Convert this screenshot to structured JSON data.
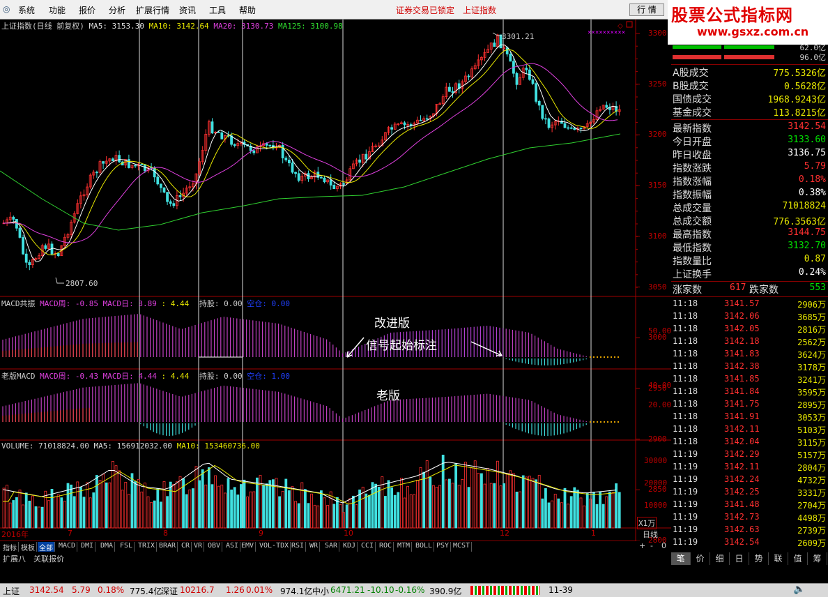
{
  "menu": [
    "系统",
    "功能",
    "报价",
    "分析",
    "扩展行情",
    "资讯",
    "工具",
    "帮助"
  ],
  "status": {
    "locked": "证券交易已锁定",
    "index": "上证指数"
  },
  "quote_button": "行 情",
  "watermark": {
    "title": "股票公式指标网",
    "url": "www.gsxz.com.cn"
  },
  "main_chart": {
    "title": "上证指数(日线 前复权)",
    "ma5": "MA5: 3153.30",
    "ma10": "MA10: 3142.64",
    "ma20": "MA20: 3130.73",
    "ma125": "MA125: 3100.98",
    "high_label": "3301.21",
    "low_label": "2807.60",
    "y_ticks": [
      "3300",
      "3250",
      "3200",
      "3150",
      "3100",
      "3050",
      "3000",
      "2950",
      "2900",
      "2850",
      "2800"
    ],
    "x_labels": [
      "2016年",
      "7",
      "8",
      "9",
      "10",
      "12",
      "1"
    ]
  },
  "macd_new": {
    "title": "MACD共振",
    "week": "MACD周: -0.85",
    "day": "MACD日: 3.89",
    "v1": ": 4.44",
    "hold": "持股: 0.00",
    "empty": "空仓: 0.00",
    "y_ticks": [
      "50.00"
    ]
  },
  "macd_old": {
    "title": "老版MACD",
    "week": "MACD周: -0.43",
    "day": "MACD日: 4.44",
    "v1": ": 4.44",
    "hold": "持股: 0.00",
    "empty": "空仓: 1.00",
    "y_ticks": [
      "40.00",
      "20.00"
    ]
  },
  "annotations": {
    "improved": "改进版",
    "signal": "信号起始标注",
    "old": "老版"
  },
  "volume": {
    "title": "VOLUME: 71018824.00",
    "ma5": "MA5: 156912032.00",
    "ma10": "MA10: 153460736.00",
    "y_ticks": [
      "30000",
      "20000",
      "10000"
    ],
    "unit": "X1万"
  },
  "daily_label": "日线",
  "ratio": {
    "a": "62.0亿",
    "b": "96.0亿"
  },
  "right_panel": {
    "turnover": [
      {
        "k": "A股成交",
        "v": "775.5326亿"
      },
      {
        "k": "B股成交",
        "v": "0.5628亿"
      },
      {
        "k": "国债成交",
        "v": "1968.9243亿"
      },
      {
        "k": "基金成交",
        "v": "113.8215亿"
      }
    ],
    "stats": [
      {
        "k": "最新指数",
        "v": "3142.54",
        "c": "#ff3030"
      },
      {
        "k": "今日开盘",
        "v": "3133.60",
        "c": "#00e000"
      },
      {
        "k": "昨日收盘",
        "v": "3136.75",
        "c": "#ffffff"
      },
      {
        "k": "指数涨跌",
        "v": "5.79",
        "c": "#ff3030"
      },
      {
        "k": "指数涨幅",
        "v": "0.18%",
        "c": "#ff3030"
      },
      {
        "k": "指数振幅",
        "v": "0.38%",
        "c": "#ffffff"
      },
      {
        "k": "总成交量",
        "v": "71018824",
        "c": "#e8e800"
      },
      {
        "k": "总成交额",
        "v": "776.3563亿",
        "c": "#e8e800"
      },
      {
        "k": "最高指数",
        "v": "3144.75",
        "c": "#ff3030"
      },
      {
        "k": "最低指数",
        "v": "3132.70",
        "c": "#00e000"
      },
      {
        "k": "指数量比",
        "v": "0.87",
        "c": "#e8e800"
      },
      {
        "k": "上证换手",
        "v": "0.24%",
        "c": "#ffffff"
      }
    ],
    "up_label": "涨家数",
    "up_value": "617",
    "down_label": "跌家数",
    "down_value": "553",
    "ticks": [
      {
        "t": "11:18",
        "p": "3141.57",
        "q": "2906万"
      },
      {
        "t": "11:18",
        "p": "3142.06",
        "q": "3685万"
      },
      {
        "t": "11:18",
        "p": "3142.05",
        "q": "2816万"
      },
      {
        "t": "11:18",
        "p": "3142.18",
        "q": "2562万"
      },
      {
        "t": "11:18",
        "p": "3141.83",
        "q": "3624万"
      },
      {
        "t": "11:18",
        "p": "3142.38",
        "q": "3178万"
      },
      {
        "t": "11:18",
        "p": "3141.85",
        "q": "3241万"
      },
      {
        "t": "11:18",
        "p": "3141.84",
        "q": "3595万"
      },
      {
        "t": "11:18",
        "p": "3141.75",
        "q": "2895万"
      },
      {
        "t": "11:18",
        "p": "3141.91",
        "q": "3053万"
      },
      {
        "t": "11:18",
        "p": "3142.11",
        "q": "5103万"
      },
      {
        "t": "11:18",
        "p": "3142.04",
        "q": "3115万"
      },
      {
        "t": "11:19",
        "p": "3142.29",
        "q": "5157万"
      },
      {
        "t": "11:19",
        "p": "3142.11",
        "q": "2804万"
      },
      {
        "t": "11:19",
        "p": "3142.24",
        "q": "4732万"
      },
      {
        "t": "11:19",
        "p": "3142.25",
        "q": "3331万"
      },
      {
        "t": "11:19",
        "p": "3141.48",
        "q": "2704万"
      },
      {
        "t": "11:19",
        "p": "3142.73",
        "q": "4498万"
      },
      {
        "t": "11:19",
        "p": "3142.63",
        "q": "2739万"
      },
      {
        "t": "11:19",
        "p": "3142.54",
        "q": "2609万"
      }
    ],
    "tabs": [
      "笔",
      "价",
      "细",
      "日",
      "势",
      "联",
      "值",
      "筹"
    ]
  },
  "indicator_tabs": [
    "指标",
    "模板",
    "全部",
    "MACD",
    "DMI",
    "DMA",
    "FSL",
    "TRIX",
    "BRAR",
    "CR",
    "VR",
    "OBV",
    "ASI",
    "EMV",
    "VOL-TDX",
    "RSI",
    "WR",
    "SAR",
    "KDJ",
    "CCI",
    "ROC",
    "MTM",
    "BOLL",
    "PSY",
    "MCST"
  ],
  "sub_tabs": [
    "扩展八",
    "关联报价"
  ],
  "zoom_controls": [
    "+",
    "-",
    "0"
  ],
  "bottom": {
    "sh_label": "上证",
    "sh_value": "3142.54",
    "sh_chg": "5.79",
    "sh_pct": "0.18%",
    "sh_amt": "775.4亿",
    "sz_label": "深证",
    "sz_value": "10216.7",
    "sz_chg": "1.26",
    "sz_pct": "0.01%",
    "sz_amt": "974.1亿",
    "zx_label": "中小",
    "zx_value": "6471.21",
    "zx_chg": "-10.10",
    "zx_pct": "-0.16%",
    "zx_amt": "390.9亿",
    "code": "11-39"
  }
}
